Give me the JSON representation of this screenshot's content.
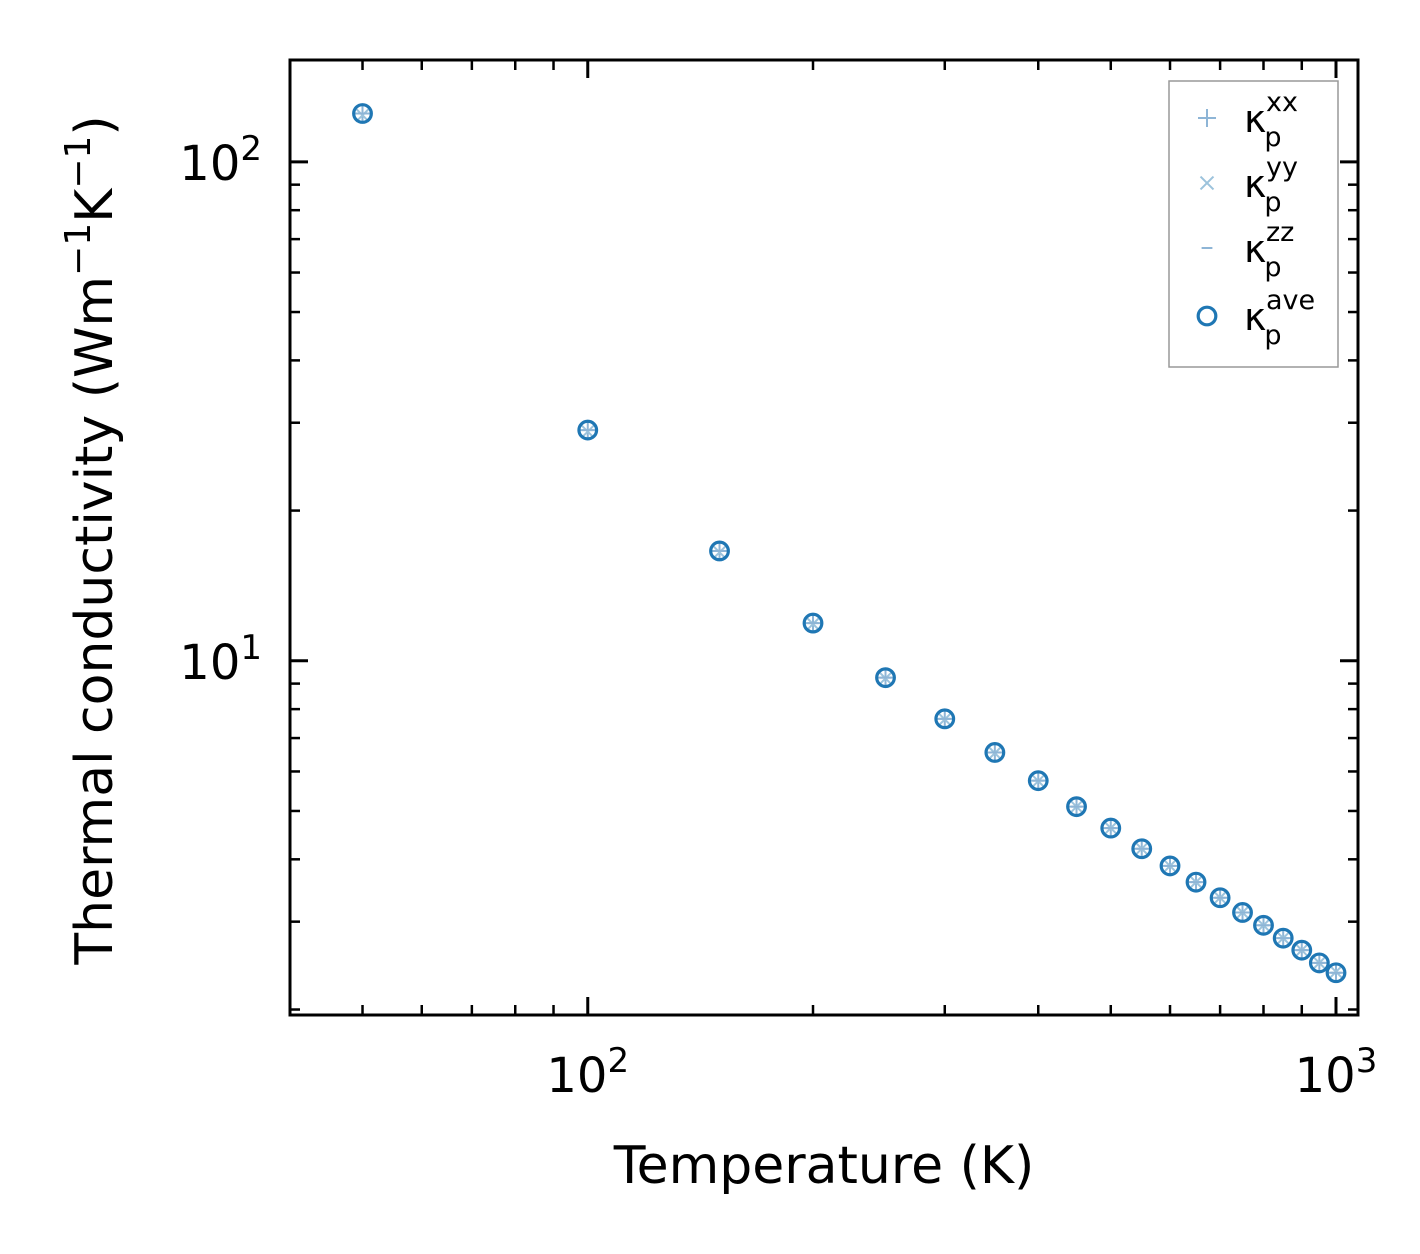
{
  "chart_data": {
    "type": "scatter",
    "xscale": "log",
    "yscale": "log",
    "xlim": [
      40,
      1070
    ],
    "ylim": [
      1.95,
      160
    ],
    "xlabel": "Temperature (K)",
    "ylabel": "Thermal conductivity (Wm⁻¹K⁻¹)",
    "ylabel_parts": {
      "base": "Thermal conductivity (Wm",
      "sup1": "−1",
      "mid": "K",
      "sup2": "−1",
      "end": ")"
    },
    "x_major_ticks": [
      {
        "value": 100,
        "base": "10",
        "exp": "2"
      },
      {
        "value": 1000,
        "base": "10",
        "exp": "3"
      }
    ],
    "y_major_ticks": [
      {
        "value": 10,
        "base": "10",
        "exp": "1"
      },
      {
        "value": 100,
        "base": "10",
        "exp": "2"
      }
    ],
    "x_minor_ticks": [
      50,
      60,
      70,
      80,
      90,
      200,
      300,
      400,
      500,
      600,
      700,
      800,
      900
    ],
    "y_minor_ticks": [
      2,
      3,
      4,
      5,
      6,
      7,
      8,
      9,
      20,
      30,
      40,
      50,
      60,
      70,
      80,
      90
    ],
    "temperatures": [
      50,
      100,
      150,
      200,
      250,
      300,
      350,
      400,
      450,
      500,
      550,
      600,
      650,
      700,
      750,
      800,
      850,
      900,
      950,
      1000
    ],
    "series": [
      {
        "name": "xx",
        "label_base": "κ",
        "label_sub": "p",
        "label_sup": "xx",
        "marker": "+",
        "color": "#8eb5d6",
        "values": [
          125,
          29.0,
          16.6,
          11.9,
          9.25,
          7.65,
          6.55,
          5.75,
          5.1,
          4.62,
          4.2,
          3.88,
          3.6,
          3.35,
          3.13,
          2.95,
          2.78,
          2.63,
          2.48,
          2.37
        ]
      },
      {
        "name": "yy",
        "label_base": "κ",
        "label_sub": "p",
        "label_sup": "yy",
        "marker": "x",
        "color": "#9cc3dc",
        "values": [
          124,
          28.8,
          16.5,
          11.85,
          9.22,
          7.63,
          6.53,
          5.74,
          5.1,
          4.62,
          4.2,
          3.88,
          3.6,
          3.35,
          3.13,
          2.95,
          2.78,
          2.63,
          2.48,
          2.38
        ]
      },
      {
        "name": "zz",
        "label_base": "κ",
        "label_sub": "p",
        "label_sup": "zz",
        "marker": "_",
        "color": "#8eb5d6",
        "values": [
          125,
          29.0,
          16.6,
          11.9,
          9.25,
          7.65,
          6.55,
          5.75,
          5.1,
          4.62,
          4.2,
          3.88,
          3.6,
          3.35,
          3.13,
          2.95,
          2.78,
          2.63,
          2.48,
          2.37
        ]
      },
      {
        "name": "ave",
        "label_base": "κ",
        "label_sub": "p",
        "label_sup": "ave",
        "marker": "o",
        "color": "#1f77b4",
        "values": [
          125,
          29.0,
          16.6,
          11.9,
          9.25,
          7.65,
          6.55,
          5.75,
          5.1,
          4.62,
          4.2,
          3.88,
          3.6,
          3.35,
          3.13,
          2.95,
          2.78,
          2.63,
          2.48,
          2.37
        ]
      }
    ],
    "legend_position": "top-right"
  }
}
